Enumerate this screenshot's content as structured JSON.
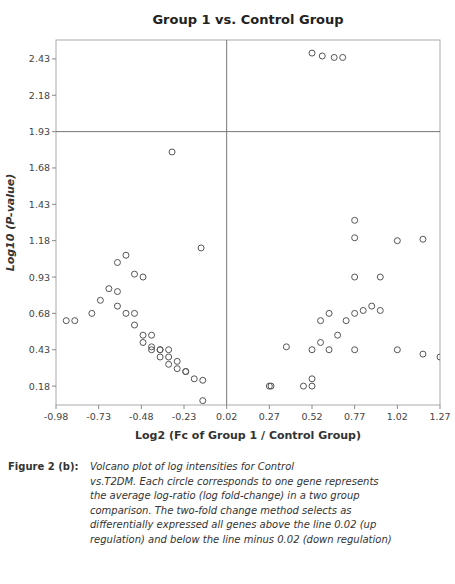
{
  "chart_data": {
    "type": "scatter",
    "title": "Group 1 vs. Control Group",
    "x_label": "Log2 (Fc of Group 1 / Control Group)",
    "y_label": "Log10 (P-value)",
    "xlim": [
      -0.98,
      1.27
    ],
    "ylim": [
      0.05,
      2.56
    ],
    "xticks": [
      -0.98,
      -0.73,
      -0.48,
      -0.23,
      0.02,
      0.27,
      0.52,
      0.77,
      1.02,
      1.27
    ],
    "yticks": [
      0.18,
      0.43,
      0.68,
      0.93,
      1.18,
      1.43,
      1.68,
      1.93,
      2.18,
      2.43
    ],
    "grid": false,
    "marker": "open-circle",
    "color": "#555555",
    "vline": {
      "value": 0.02,
      "color": "#777777"
    },
    "hline": {
      "value": 1.93,
      "color": "#777777"
    },
    "x": [
      0.52,
      0.58,
      0.65,
      0.7,
      -0.3,
      -0.13,
      0.77,
      1.02,
      0.77,
      1.17,
      0.77,
      0.92,
      0.92,
      -0.57,
      -0.62,
      -0.52,
      -0.47,
      -0.67,
      -0.62,
      -0.72,
      -0.62,
      -0.77,
      -0.57,
      -0.52,
      -0.92,
      -0.87,
      -0.52,
      -0.47,
      -0.42,
      -0.47,
      -0.42,
      -0.37,
      -0.42,
      -0.37,
      -0.32,
      -0.37,
      -0.32,
      -0.27,
      -0.32,
      -0.27,
      -0.22,
      -0.22,
      -0.17,
      -0.12,
      -0.12,
      0.27,
      0.28,
      0.37,
      0.47,
      0.52,
      0.52,
      0.52,
      0.57,
      0.57,
      0.62,
      0.62,
      0.67,
      0.72,
      0.77,
      0.77,
      0.82,
      0.87,
      1.02,
      1.17,
      1.27
    ],
    "values": [
      2.47,
      2.45,
      2.44,
      2.44,
      1.79,
      1.13,
      1.32,
      1.18,
      1.2,
      1.19,
      0.93,
      0.93,
      0.7,
      1.08,
      1.03,
      0.95,
      0.93,
      0.85,
      0.83,
      0.77,
      0.73,
      0.68,
      0.68,
      0.68,
      0.63,
      0.63,
      0.6,
      0.53,
      0.53,
      0.48,
      0.45,
      0.43,
      0.43,
      0.43,
      0.43,
      0.38,
      0.38,
      0.35,
      0.33,
      0.3,
      0.28,
      0.28,
      0.23,
      0.22,
      0.08,
      0.18,
      0.18,
      0.45,
      0.18,
      0.18,
      0.23,
      0.43,
      0.48,
      0.63,
      0.43,
      0.68,
      0.53,
      0.63,
      0.43,
      0.68,
      0.7,
      0.73,
      0.43,
      0.4,
      0.38
    ],
    "caption_label": "Figure 2 (b):",
    "caption": [
      "Volcano plot of log intensities for Control",
      "vs.T2DM. Each circle corresponds to one gene represents",
      "the average log-ratio (log fold-change) in a two group",
      "comparison. The two-fold change method selects as",
      "differentially expressed all genes above the line 0.02 (up",
      "regulation) and below the line minus 0.02 (down regulation)"
    ]
  }
}
